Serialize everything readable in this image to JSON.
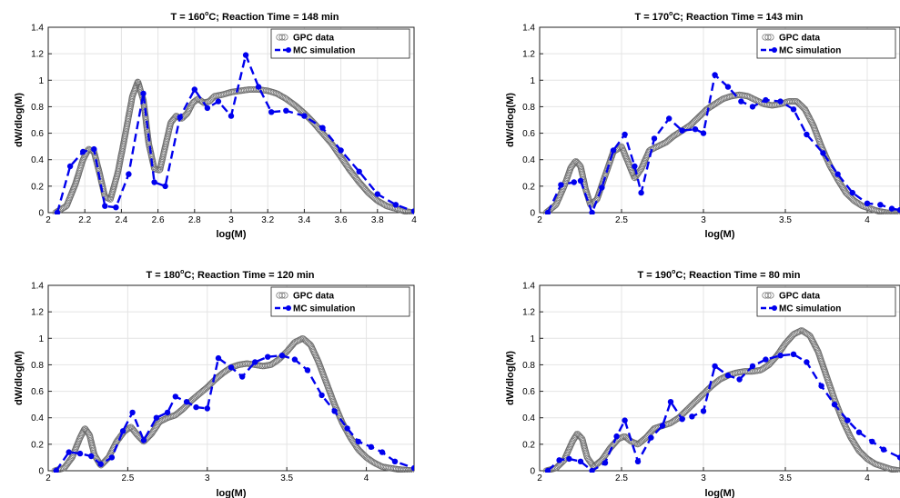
{
  "chart_data": [
    {
      "type": "line",
      "title_main": "T = 160",
      "title_sup": "o",
      "title_rest": "C; Reaction Time = 148 min",
      "xlabel": "log(M)",
      "ylabel": "dW/dlog(M)",
      "xlim": [
        2,
        4
      ],
      "ylim": [
        0,
        1.4
      ],
      "xticks": [
        "2",
        "2.2",
        "2.4",
        "2.6",
        "2.8",
        "3",
        "3.2",
        "3.4",
        "3.6",
        "3.8",
        "4"
      ],
      "yticks": [
        "0",
        "0.2",
        "0.4",
        "0.6",
        "0.8",
        "1",
        "1.2",
        "1.4"
      ],
      "grid": true,
      "legend_position": "top-right",
      "series": [
        {
          "name": "GPC data",
          "style": "open-circles",
          "color": "#666666",
          "x": [
            2.04,
            2.1,
            2.15,
            2.19,
            2.22,
            2.25,
            2.28,
            2.31,
            2.34,
            2.38,
            2.42,
            2.46,
            2.49,
            2.52,
            2.55,
            2.58,
            2.61,
            2.64,
            2.67,
            2.7,
            2.73,
            2.76,
            2.79,
            2.82,
            2.85,
            2.88,
            2.91,
            2.95,
            3.0,
            3.05,
            3.1,
            3.15,
            3.2,
            3.25,
            3.3,
            3.35,
            3.4,
            3.45,
            3.5,
            3.55,
            3.6,
            3.65,
            3.7,
            3.75,
            3.8,
            3.85,
            3.9,
            3.95,
            4.0
          ],
          "y": [
            0.0,
            0.05,
            0.22,
            0.4,
            0.48,
            0.46,
            0.3,
            0.12,
            0.1,
            0.3,
            0.58,
            0.88,
            0.99,
            0.85,
            0.52,
            0.33,
            0.32,
            0.5,
            0.68,
            0.73,
            0.71,
            0.75,
            0.83,
            0.86,
            0.83,
            0.84,
            0.88,
            0.89,
            0.91,
            0.92,
            0.93,
            0.93,
            0.92,
            0.9,
            0.86,
            0.81,
            0.75,
            0.68,
            0.6,
            0.52,
            0.42,
            0.32,
            0.23,
            0.15,
            0.09,
            0.05,
            0.03,
            0.01,
            0.0
          ]
        },
        {
          "name": "MC simulation",
          "style": "dashed-dots",
          "color": "#0000ee",
          "x": [
            2.05,
            2.12,
            2.19,
            2.25,
            2.31,
            2.37,
            2.44,
            2.52,
            2.58,
            2.64,
            2.72,
            2.8,
            2.87,
            2.93,
            3.0,
            3.08,
            3.15,
            3.22,
            3.3,
            3.4,
            3.5,
            3.6,
            3.7,
            3.8,
            3.9,
            4.0
          ],
          "y": [
            0.0,
            0.35,
            0.46,
            0.48,
            0.05,
            0.04,
            0.29,
            0.9,
            0.23,
            0.2,
            0.72,
            0.93,
            0.79,
            0.84,
            0.73,
            1.19,
            0.95,
            0.76,
            0.77,
            0.73,
            0.64,
            0.47,
            0.31,
            0.14,
            0.06,
            0.01
          ]
        }
      ]
    },
    {
      "type": "line",
      "title_main": "T = 170",
      "title_sup": "o",
      "title_rest": "C; Reaction Time = 143 min",
      "xlabel": "log(M)",
      "ylabel": "dW/dlog(M)",
      "xlim": [
        2,
        4.2
      ],
      "ylim": [
        0,
        1.4
      ],
      "xticks": [
        "2",
        "2.5",
        "3",
        "3.5",
        "4"
      ],
      "yticks": [
        "0",
        "0.2",
        "0.4",
        "0.6",
        "0.8",
        "1",
        "1.2",
        "1.4"
      ],
      "grid": true,
      "legend_position": "top-right",
      "series": [
        {
          "name": "GPC data",
          "style": "open-circles",
          "color": "#666666",
          "x": [
            2.04,
            2.1,
            2.15,
            2.19,
            2.22,
            2.25,
            2.28,
            2.31,
            2.35,
            2.4,
            2.45,
            2.5,
            2.54,
            2.58,
            2.62,
            2.67,
            2.72,
            2.77,
            2.82,
            2.87,
            2.92,
            2.97,
            3.02,
            3.07,
            3.12,
            3.17,
            3.22,
            3.27,
            3.32,
            3.37,
            3.42,
            3.47,
            3.52,
            3.57,
            3.62,
            3.67,
            3.72,
            3.77,
            3.82,
            3.87,
            3.92,
            3.97,
            4.02,
            4.07,
            4.12,
            4.2
          ],
          "y": [
            0.0,
            0.06,
            0.2,
            0.34,
            0.39,
            0.35,
            0.18,
            0.06,
            0.1,
            0.28,
            0.46,
            0.5,
            0.38,
            0.26,
            0.33,
            0.47,
            0.5,
            0.53,
            0.58,
            0.62,
            0.66,
            0.72,
            0.78,
            0.82,
            0.86,
            0.88,
            0.89,
            0.88,
            0.85,
            0.82,
            0.81,
            0.82,
            0.84,
            0.84,
            0.78,
            0.66,
            0.5,
            0.36,
            0.25,
            0.15,
            0.09,
            0.05,
            0.03,
            0.01,
            0.0,
            0.0
          ]
        },
        {
          "name": "MC simulation",
          "style": "dashed-dots",
          "color": "#0000ee",
          "x": [
            2.05,
            2.13,
            2.21,
            2.25,
            2.32,
            2.38,
            2.45,
            2.52,
            2.58,
            2.62,
            2.7,
            2.79,
            2.87,
            2.95,
            3.0,
            3.07,
            3.15,
            3.23,
            3.3,
            3.38,
            3.47,
            3.55,
            3.63,
            3.73,
            3.82,
            3.91,
            4.0,
            4.08,
            4.15,
            4.2
          ],
          "y": [
            0.0,
            0.21,
            0.23,
            0.24,
            0.0,
            0.19,
            0.47,
            0.59,
            0.35,
            0.15,
            0.56,
            0.71,
            0.62,
            0.63,
            0.6,
            1.04,
            0.95,
            0.84,
            0.8,
            0.85,
            0.84,
            0.78,
            0.59,
            0.45,
            0.29,
            0.15,
            0.07,
            0.06,
            0.03,
            0.02
          ]
        }
      ]
    },
    {
      "type": "line",
      "title_main": "T = 180",
      "title_sup": "o",
      "title_rest": "C; Reaction Time = 120 min",
      "xlabel": "log(M)",
      "ylabel": "dW/dlog(M)",
      "xlim": [
        2,
        4.3
      ],
      "ylim": [
        0,
        1.4
      ],
      "xticks": [
        "2",
        "2.5",
        "3",
        "3.5",
        "4"
      ],
      "yticks": [
        "0",
        "0.2",
        "0.4",
        "0.6",
        "0.8",
        "1",
        "1.2",
        "1.4"
      ],
      "grid": true,
      "legend_position": "top-right",
      "series": [
        {
          "name": "GPC data",
          "style": "open-circles",
          "color": "#666666",
          "x": [
            2.04,
            2.1,
            2.15,
            2.2,
            2.23,
            2.26,
            2.29,
            2.33,
            2.38,
            2.43,
            2.48,
            2.52,
            2.56,
            2.6,
            2.65,
            2.7,
            2.75,
            2.8,
            2.85,
            2.9,
            2.95,
            3.0,
            3.05,
            3.1,
            3.15,
            3.2,
            3.25,
            3.3,
            3.35,
            3.4,
            3.45,
            3.5,
            3.55,
            3.6,
            3.65,
            3.7,
            3.75,
            3.8,
            3.85,
            3.9,
            3.95,
            4.0,
            4.05,
            4.1,
            4.15,
            4.2,
            4.3
          ],
          "y": [
            0.0,
            0.02,
            0.1,
            0.25,
            0.32,
            0.27,
            0.12,
            0.04,
            0.1,
            0.22,
            0.3,
            0.33,
            0.27,
            0.22,
            0.28,
            0.37,
            0.4,
            0.42,
            0.47,
            0.53,
            0.58,
            0.63,
            0.69,
            0.74,
            0.78,
            0.8,
            0.81,
            0.8,
            0.79,
            0.8,
            0.84,
            0.9,
            0.97,
            1.0,
            0.95,
            0.82,
            0.66,
            0.5,
            0.36,
            0.25,
            0.16,
            0.1,
            0.06,
            0.03,
            0.02,
            0.01,
            0.0
          ]
        },
        {
          "name": "MC simulation",
          "style": "dashed-dots",
          "color": "#0000ee",
          "x": [
            2.05,
            2.13,
            2.2,
            2.27,
            2.33,
            2.4,
            2.47,
            2.53,
            2.6,
            2.68,
            2.75,
            2.8,
            2.87,
            2.93,
            3.0,
            3.07,
            3.15,
            3.22,
            3.3,
            3.38,
            3.47,
            3.55,
            3.63,
            3.72,
            3.8,
            3.88,
            3.95,
            4.03,
            4.1,
            4.18,
            4.3
          ],
          "y": [
            0.0,
            0.14,
            0.13,
            0.11,
            0.05,
            0.1,
            0.3,
            0.44,
            0.23,
            0.4,
            0.44,
            0.56,
            0.52,
            0.48,
            0.47,
            0.85,
            0.78,
            0.71,
            0.82,
            0.86,
            0.87,
            0.84,
            0.76,
            0.57,
            0.45,
            0.32,
            0.22,
            0.18,
            0.14,
            0.07,
            0.02
          ]
        }
      ]
    },
    {
      "type": "line",
      "title_main": "T = 190",
      "title_sup": "o",
      "title_rest": "C; Reaction Time = 80 min",
      "xlabel": "log(M)",
      "ylabel": "dW/dlog(M)",
      "xlim": [
        2,
        4.2
      ],
      "ylim": [
        0,
        1.4
      ],
      "xticks": [
        "2",
        "2.5",
        "3",
        "3.5",
        "4"
      ],
      "yticks": [
        "0",
        "0.2",
        "0.4",
        "0.6",
        "0.8",
        "1",
        "1.2",
        "1.4"
      ],
      "grid": true,
      "legend_position": "top-right",
      "series": [
        {
          "name": "GPC data",
          "style": "open-circles",
          "color": "#666666",
          "x": [
            2.04,
            2.1,
            2.15,
            2.2,
            2.23,
            2.26,
            2.29,
            2.33,
            2.38,
            2.43,
            2.48,
            2.52,
            2.56,
            2.6,
            2.65,
            2.7,
            2.75,
            2.8,
            2.85,
            2.9,
            2.95,
            3.0,
            3.05,
            3.1,
            3.15,
            3.2,
            3.25,
            3.3,
            3.35,
            3.4,
            3.45,
            3.5,
            3.55,
            3.6,
            3.65,
            3.7,
            3.75,
            3.8,
            3.85,
            3.9,
            3.95,
            4.0,
            4.05,
            4.1,
            4.15,
            4.2
          ],
          "y": [
            0.0,
            0.02,
            0.08,
            0.22,
            0.28,
            0.24,
            0.1,
            0.03,
            0.08,
            0.17,
            0.24,
            0.26,
            0.22,
            0.2,
            0.25,
            0.32,
            0.34,
            0.36,
            0.4,
            0.46,
            0.52,
            0.58,
            0.64,
            0.69,
            0.72,
            0.74,
            0.75,
            0.75,
            0.76,
            0.8,
            0.87,
            0.96,
            1.03,
            1.06,
            1.02,
            0.9,
            0.72,
            0.54,
            0.38,
            0.25,
            0.15,
            0.09,
            0.05,
            0.03,
            0.01,
            0.0
          ]
        },
        {
          "name": "MC simulation",
          "style": "dashed-dots",
          "color": "#0000ee",
          "x": [
            2.05,
            2.12,
            2.18,
            2.25,
            2.32,
            2.4,
            2.47,
            2.52,
            2.6,
            2.68,
            2.75,
            2.8,
            2.87,
            2.93,
            3.0,
            3.07,
            3.15,
            3.22,
            3.3,
            3.38,
            3.47,
            3.55,
            3.63,
            3.72,
            3.8,
            3.88,
            3.95,
            4.03,
            4.1,
            4.2
          ],
          "y": [
            0.0,
            0.08,
            0.09,
            0.07,
            0.0,
            0.06,
            0.26,
            0.38,
            0.07,
            0.25,
            0.34,
            0.52,
            0.39,
            0.41,
            0.45,
            0.79,
            0.72,
            0.69,
            0.79,
            0.84,
            0.87,
            0.88,
            0.82,
            0.64,
            0.5,
            0.38,
            0.29,
            0.22,
            0.16,
            0.1
          ]
        }
      ]
    }
  ]
}
